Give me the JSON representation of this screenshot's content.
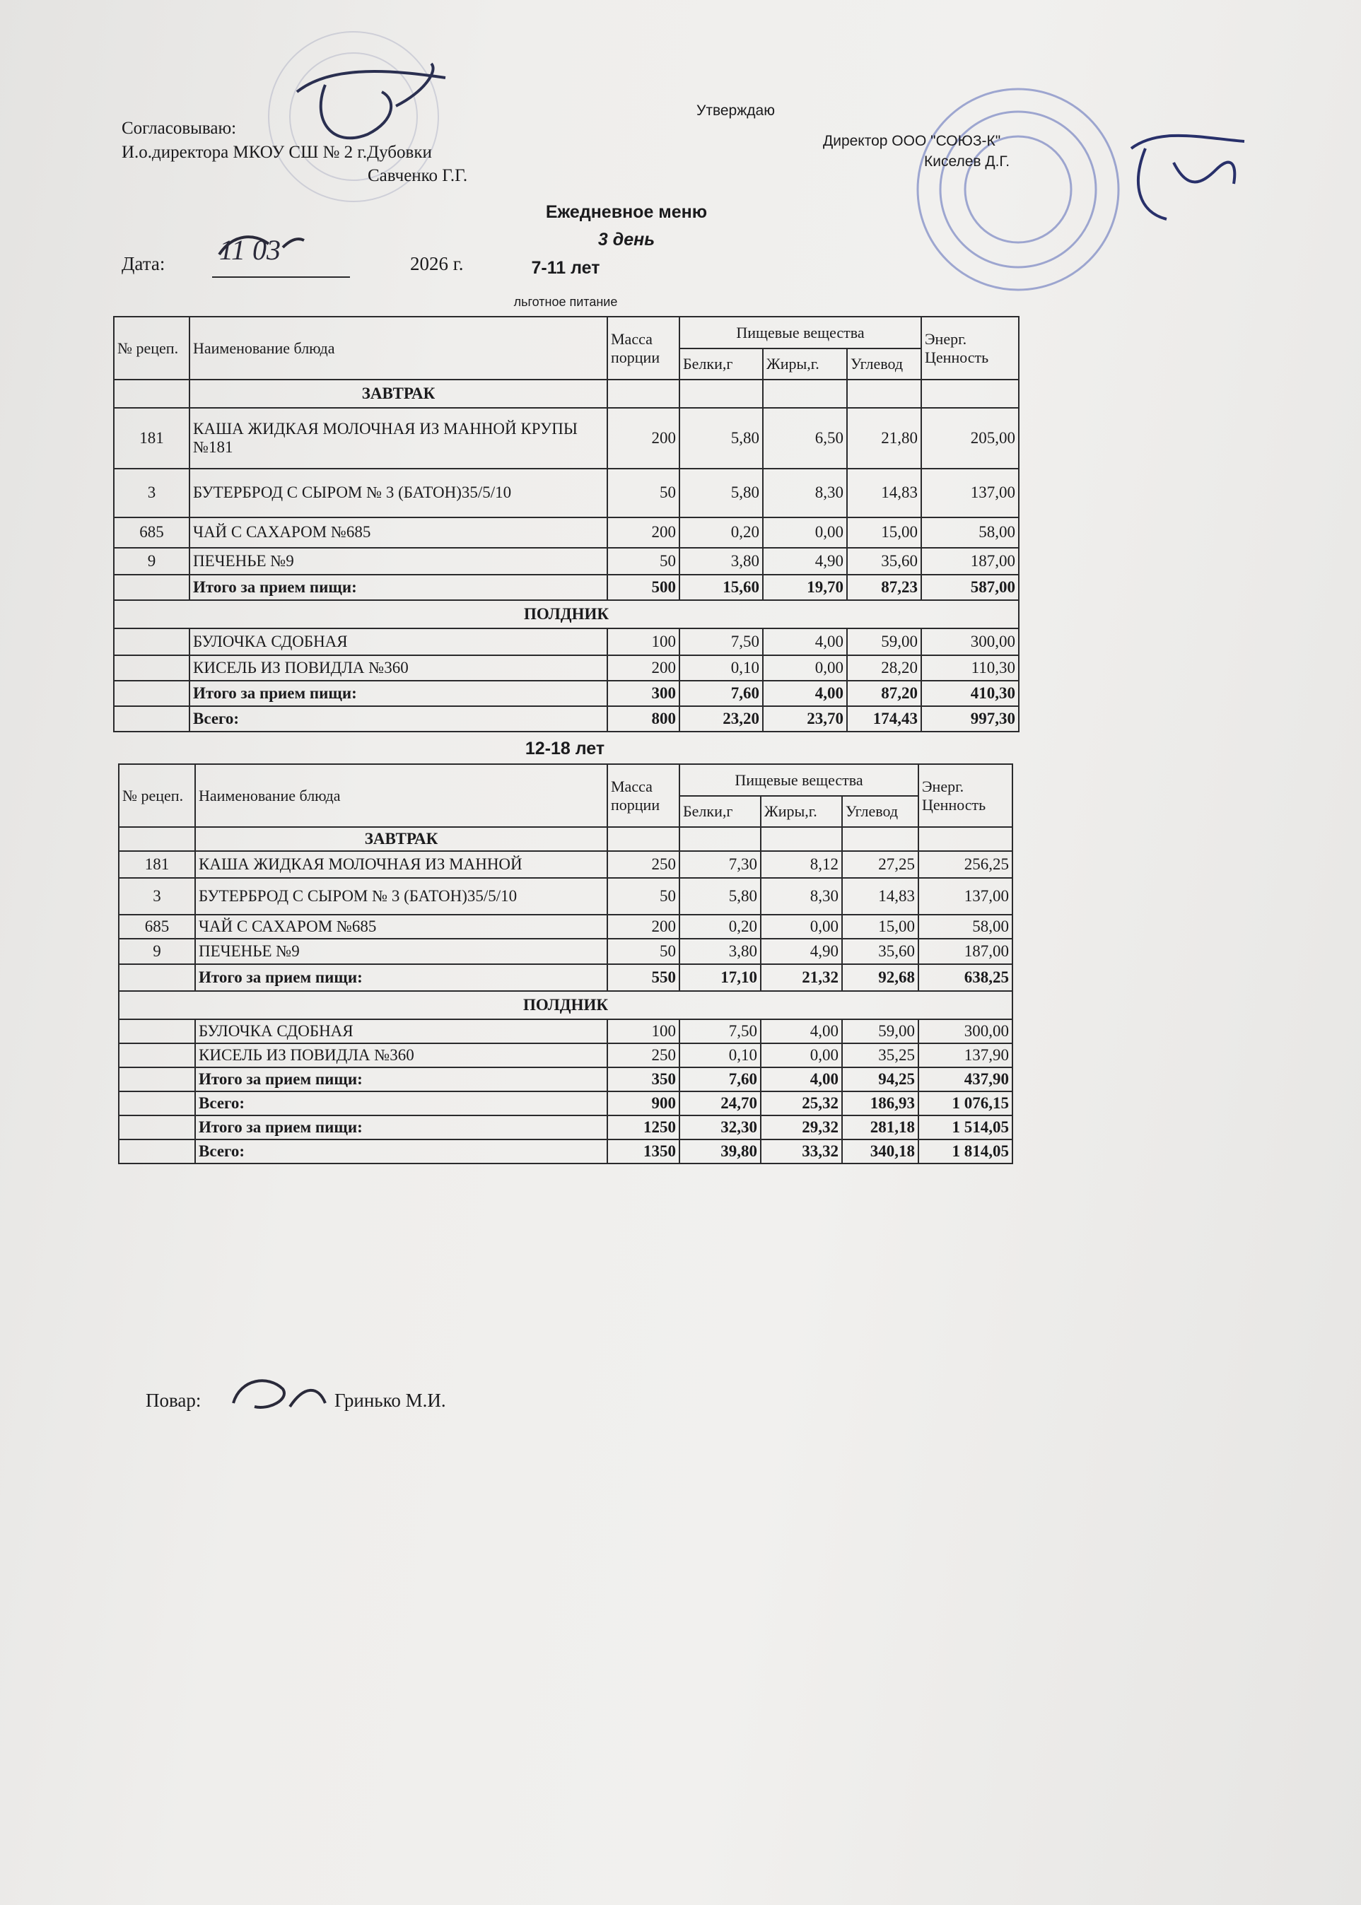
{
  "header": {
    "agree_label": "Согласовываю:",
    "agree_position": "И.о.директора МКОУ СШ № 2 г.Дубовки",
    "agree_name": "Савченко Г.Г.",
    "approve_label": "Утверждаю",
    "approve_position": "Директор ООО \"СОЮЗ-К\"",
    "approve_name": "Киселев Д.Г.",
    "title": "Ежедневное меню",
    "day": "3 день",
    "date_label": "Дата:",
    "date_value": "11 03",
    "year": "2026 г."
  },
  "tables": [
    {
      "age": "7-11 лет",
      "note": "льготное питание",
      "columns": [
        "№ рецеп.",
        "Наименование блюда",
        "Масса порции",
        "Пищевые вещества",
        "Энерг. Ценность"
      ],
      "subcolumns": [
        "Белки,г",
        "Жиры,г.",
        "Углевод"
      ],
      "groups": [
        {
          "title": "ЗАВТРАК",
          "rows": [
            [
              "181",
              "КАША ЖИДКАЯ МОЛОЧНАЯ ИЗ МАННОЙ КРУПЫ №181",
              "200",
              "5,80",
              "6,50",
              "21,80",
              "205,00"
            ],
            [
              "3",
              "БУТЕРБРОД С СЫРОМ № 3   (БАТОН)35/5/10",
              "50",
              "5,80",
              "8,30",
              "14,83",
              "137,00"
            ],
            [
              "685",
              "ЧАЙ С САХАРОМ №685",
              "200",
              "0,20",
              "0,00",
              "15,00",
              "58,00"
            ],
            [
              "9",
              "ПЕЧЕНЬЕ №9",
              "50",
              "3,80",
              "4,90",
              "35,60",
              "187,00"
            ],
            [
              null,
              "Итого за прием пищи:",
              "500",
              "15,60",
              "19,70",
              "87,23",
              "587,00"
            ]
          ]
        },
        {
          "title": "ПОЛДНИК",
          "rows": [
            [
              null,
              "БУЛОЧКА СДОБНАЯ",
              "100",
              "7,50",
              "4,00",
              "59,00",
              "300,00"
            ],
            [
              null,
              "КИСЕЛЬ ИЗ ПОВИДЛА №360",
              "200",
              "0,10",
              "0,00",
              "28,20",
              "110,30"
            ],
            [
              null,
              "Итого за прием пищи:",
              "300",
              "7,60",
              "4,00",
              "87,20",
              "410,30"
            ],
            [
              null,
              "Всего:",
              "800",
              "23,20",
              "23,70",
              "174,43",
              "997,30"
            ]
          ]
        }
      ]
    },
    {
      "age": "12-18 лет",
      "columns": [
        "№ рецеп.",
        "Наименование блюда",
        "Масса порции",
        "Пищевые вещества",
        "Энерг. Ценность"
      ],
      "subcolumns": [
        "Белки,г",
        "Жиры,г.",
        "Углевод"
      ],
      "groups": [
        {
          "title": "ЗАВТРАК",
          "rows": [
            [
              "181",
              "КАША ЖИДКАЯ МОЛОЧНАЯ ИЗ МАННОЙ",
              "250",
              "7,30",
              "8,12",
              "27,25",
              "256,25"
            ],
            [
              "3",
              "БУТЕРБРОД С СЫРОМ № 3   (БАТОН)35/5/10",
              "50",
              "5,80",
              "8,30",
              "14,83",
              "137,00"
            ],
            [
              "685",
              "ЧАЙ С САХАРОМ №685",
              "200",
              "0,20",
              "0,00",
              "15,00",
              "58,00"
            ],
            [
              "9",
              "ПЕЧЕНЬЕ №9",
              "50",
              "3,80",
              "4,90",
              "35,60",
              "187,00"
            ],
            [
              null,
              "Итого за прием пищи:",
              "550",
              "17,10",
              "21,32",
              "92,68",
              "638,25"
            ]
          ]
        },
        {
          "title": "ПОЛДНИК",
          "rows": [
            [
              null,
              "БУЛОЧКА СДОБНАЯ",
              "100",
              "7,50",
              "4,00",
              "59,00",
              "300,00"
            ],
            [
              null,
              "КИСЕЛЬ ИЗ ПОВИДЛА №360",
              "250",
              "0,10",
              "0,00",
              "35,25",
              "137,90"
            ],
            [
              null,
              "Итого за прием пищи:",
              "350",
              "7,60",
              "4,00",
              "94,25",
              "437,90"
            ],
            [
              null,
              "Всего:",
              "900",
              "24,70",
              "25,32",
              "186,93",
              "1 076,15"
            ],
            [
              null,
              "Итого за прием пищи:",
              "1250",
              "32,30",
              "29,32",
              "281,18",
              "1 514,05"
            ],
            [
              null,
              "Всего:",
              "1350",
              "39,80",
              "33,32",
              "340,18",
              "1 814,05"
            ]
          ]
        }
      ]
    }
  ],
  "footer": {
    "cook_label": "Повар:",
    "cook_name": "Гринько М.И."
  }
}
